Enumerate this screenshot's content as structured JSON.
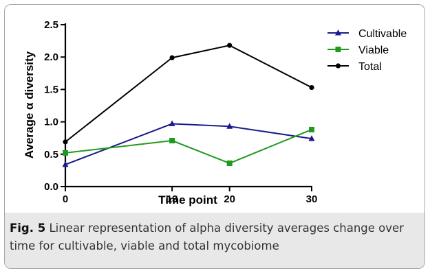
{
  "caption": {
    "label": "Fig. 5",
    "text": "Linear representation of alpha diversity averages change over time for cultivable, viable and total mycobiome"
  },
  "chart_data": {
    "type": "line",
    "xlabel": "Time point",
    "ylabel": "Average α diversity",
    "x": [
      0,
      13,
      20,
      30
    ],
    "xticks": [
      "0",
      "13",
      "20",
      "30"
    ],
    "yticks": [
      "0.0",
      "0.5",
      "1.0",
      "1.5",
      "2.0",
      "2.5"
    ],
    "xlim": [
      0,
      30
    ],
    "ylim": [
      0,
      2.5
    ],
    "grid": false,
    "legend_position": "top-right",
    "series": [
      {
        "name": "Cultivable",
        "values": [
          0.34,
          0.97,
          0.93,
          0.74
        ],
        "color": "#1a1a8c",
        "marker": "triangle"
      },
      {
        "name": "Viable",
        "values": [
          0.52,
          0.71,
          0.36,
          0.88
        ],
        "color": "#1e9a1e",
        "marker": "square"
      },
      {
        "name": "Total",
        "values": [
          0.69,
          1.99,
          2.18,
          1.53
        ],
        "color": "#000000",
        "marker": "circle"
      }
    ]
  }
}
